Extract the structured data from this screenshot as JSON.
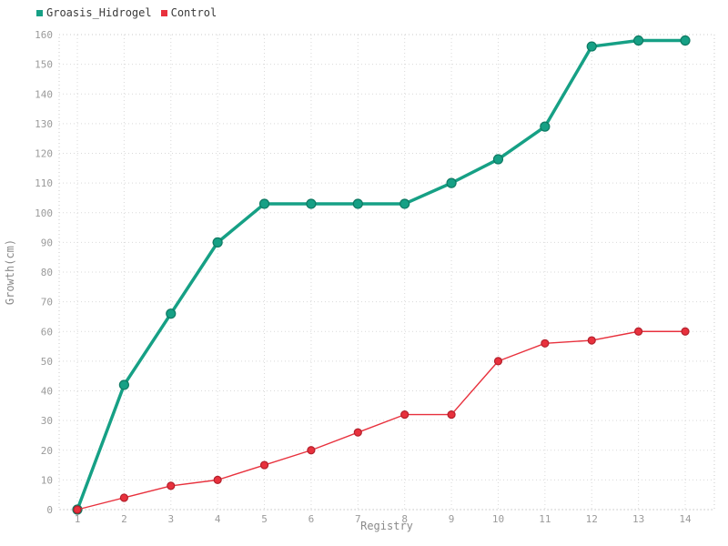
{
  "legend": {
    "items": [
      {
        "label": "Groasis_Hidrogel",
        "color": "#16a085"
      },
      {
        "label": "Control",
        "color": "#e8313d"
      }
    ]
  },
  "chart_data": {
    "type": "line",
    "x": [
      1,
      2,
      3,
      4,
      5,
      6,
      7,
      8,
      9,
      10,
      11,
      12,
      13,
      14
    ],
    "series": [
      {
        "name": "Groasis_Hidrogel",
        "color": "#16a085",
        "marker_stroke": "#0e7a63",
        "line_width": 3.5,
        "marker_radius": 5,
        "values": [
          0,
          42,
          66,
          90,
          103,
          103,
          103,
          103,
          110,
          118,
          129,
          156,
          158,
          158
        ]
      },
      {
        "name": "Control",
        "color": "#e8313d",
        "marker_stroke": "#b3202c",
        "line_width": 1.4,
        "marker_radius": 4,
        "values": [
          0,
          4,
          8,
          10,
          15,
          20,
          26,
          32,
          32,
          50,
          56,
          57,
          60,
          60
        ]
      }
    ],
    "title": "",
    "xlabel": "Registry",
    "ylabel": "Growth(cm)",
    "ylim": [
      0,
      160
    ],
    "ytick_step": 10,
    "grid": true,
    "grid_color": "#d9d9d9",
    "tick_color": "#9a9a9a",
    "axis_label_color": "#8a8a8a",
    "legend_position": "top-left"
  }
}
